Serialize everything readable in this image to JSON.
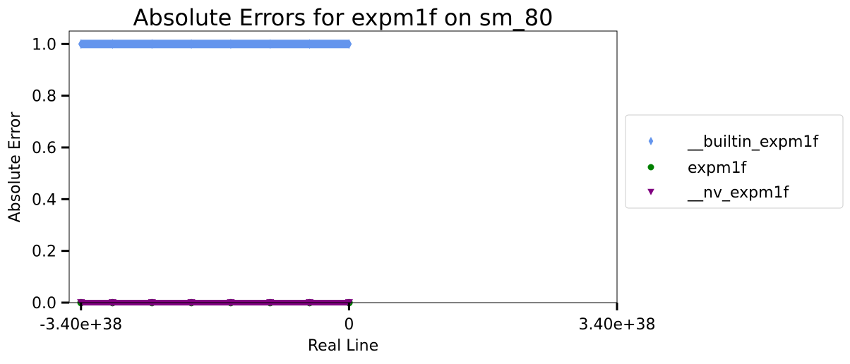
{
  "chart_data": {
    "type": "scatter",
    "title": "Absolute Errors for expm1f on sm_80",
    "xlabel": "Real Line",
    "ylabel": "Absolute Error",
    "xlim": [
      -3.55e+38,
      3.4e+38
    ],
    "ylim": [
      0,
      1.05
    ],
    "x_ticks": [
      {
        "value": -3.4e+38,
        "label": "-3.40e+38"
      },
      {
        "value": 0,
        "label": "0"
      },
      {
        "value": 3.4e+38,
        "label": "3.40e+38"
      }
    ],
    "y_ticks": [
      {
        "value": 0.0,
        "label": "0.0"
      },
      {
        "value": 0.2,
        "label": "0.2"
      },
      {
        "value": 0.4,
        "label": "0.4"
      },
      {
        "value": 0.6,
        "label": "0.6"
      },
      {
        "value": 0.8,
        "label": "0.8"
      },
      {
        "value": 1.0,
        "label": "1.0"
      }
    ],
    "grid": false,
    "legend_position": "right, outside plot",
    "series": [
      {
        "name": "__builtin_expm1f",
        "marker": "diamond",
        "color": "#6495ED",
        "points": [
          [
            -3.4e+38,
            1.0
          ],
          [
            -3e+38,
            1.0
          ],
          [
            -2.5e+38,
            1.0
          ],
          [
            -2e+38,
            1.0
          ],
          [
            -1.5e+38,
            1.0
          ],
          [
            -1e+38,
            1.0
          ],
          [
            -5e+37,
            1.0
          ],
          [
            0,
            1.0
          ]
        ]
      },
      {
        "name": "expm1f",
        "marker": "circle",
        "color": "#008000",
        "points": [
          [
            -3.4e+38,
            0.0
          ],
          [
            -3e+38,
            0.0
          ],
          [
            -2.5e+38,
            0.0
          ],
          [
            -2e+38,
            0.0
          ],
          [
            -1.5e+38,
            0.0
          ],
          [
            -1e+38,
            0.0
          ],
          [
            -5e+37,
            0.0
          ],
          [
            0,
            0.0
          ]
        ]
      },
      {
        "name": "__nv_expm1f",
        "marker": "triangle-down",
        "color": "#800080",
        "points": [
          [
            -3.4e+38,
            0.0
          ],
          [
            -3e+38,
            0.0
          ],
          [
            -2.5e+38,
            0.0
          ],
          [
            -2e+38,
            0.0
          ],
          [
            -1.5e+38,
            0.0
          ],
          [
            -1e+38,
            0.0
          ],
          [
            -5e+37,
            0.0
          ],
          [
            0,
            0.0
          ]
        ]
      }
    ]
  }
}
